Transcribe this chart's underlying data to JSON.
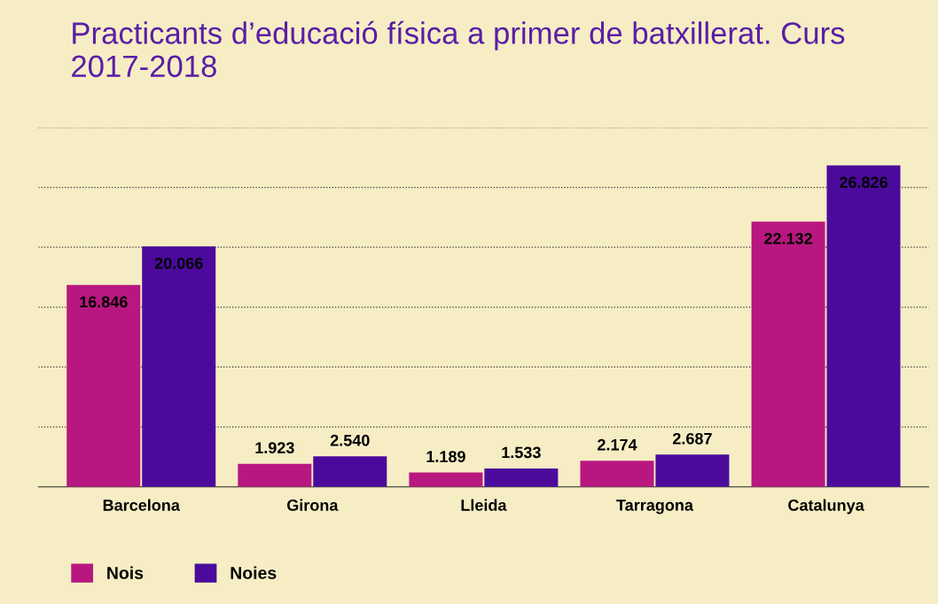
{
  "chart_data": {
    "type": "bar",
    "title": "Practicants d’educació física a primer de batxillerat. Curs 2017-2018",
    "categories": [
      "Barcelona",
      "Girona",
      "Lleida",
      "Tarragona",
      "Catalunya"
    ],
    "series": [
      {
        "name": "Nois",
        "color": "#b8177f",
        "values": [
          16846,
          1923,
          1189,
          2174,
          22132
        ],
        "value_labels": [
          "16.846",
          "1.923",
          "1.189",
          "2.174",
          "22.132"
        ]
      },
      {
        "name": "Noies",
        "color": "#4b0a9c",
        "values": [
          20066,
          2540,
          1533,
          2687,
          26826
        ],
        "value_labels": [
          "20.066",
          "2.540",
          "1.533",
          "2.687",
          "26.826"
        ]
      }
    ],
    "ylim": [
      0,
      30000
    ],
    "yticks": [
      {
        "value": 5000,
        "label": null
      },
      {
        "value": 10000,
        "label": null
      },
      {
        "value": 15000,
        "label": null
      },
      {
        "value": 20000,
        "label": null
      },
      {
        "value": 25000,
        "label": null
      },
      {
        "value": 30000,
        "label": null
      }
    ],
    "grid": "y",
    "legend": "bottom left"
  }
}
